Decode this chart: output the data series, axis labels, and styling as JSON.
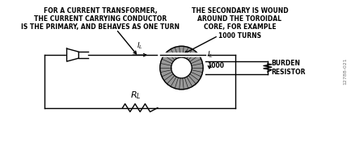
{
  "text_left": "FOR A CURRENT TRANSFORMER,\nTHE CURRENT CARRYING CONDUCTOR\nIS THE PRIMARY, AND BEHAVES AS ONE TURN",
  "text_right": "THE SECONDARY IS WOUND\nAROUND THE TOROIDAL\nCORE, FOR EXAMPLE\n1000 TURNS",
  "label_burden": "BURDEN\nRESISTOR",
  "label_RL": "$R_L$",
  "watermark": "12788-021",
  "bg_color": "#ffffff",
  "line_color": "#000000",
  "fig_w": 4.35,
  "fig_h": 1.76,
  "dpi": 100
}
